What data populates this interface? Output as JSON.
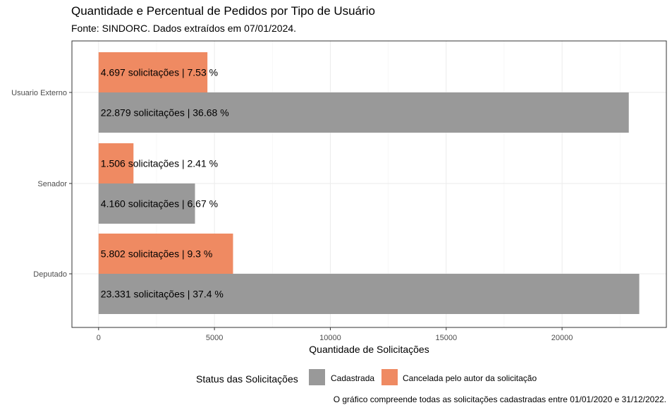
{
  "chart_data": {
    "type": "bar",
    "orientation": "horizontal",
    "title": "Quantidade e Percentual de Pedidos por Tipo de Usuário",
    "subtitle": "Fonte: SINDORC. Dados extraídos em 07/01/2024.",
    "xlabel": "Quantidade de Solicitações",
    "ylabel": "",
    "categories": [
      "Usuario Externo",
      "Senador",
      "Deputado"
    ],
    "xlim": [
      -1150,
      24500
    ],
    "xticks": [
      0,
      5000,
      10000,
      15000,
      20000
    ],
    "xtick_labels": [
      "0",
      "5000",
      "10000",
      "15000",
      "20000"
    ],
    "grid": true,
    "legend_position": "bottom",
    "legend_title": "Status das Solicitações",
    "series": [
      {
        "name": "Cadastrada",
        "color": "#999999",
        "values": [
          22879,
          4160,
          23331
        ],
        "labels": [
          "22.879 solicitações | 36.68 %",
          "4.160 solicitações | 6.67 %",
          "23.331 solicitações | 37.4 %"
        ]
      },
      {
        "name": "Cancelada pelo autor da solicitação",
        "color": "#EF8A62",
        "values": [
          4697,
          1506,
          5802
        ],
        "labels": [
          "4.697 solicitações | 7.53 %",
          "1.506 solicitações | 2.41 %",
          "5.802 solicitações | 9.3 %"
        ]
      }
    ],
    "caption": "O gráfico compreende todas as solicitações cadastradas entre 01/01/2020 e 31/12/2022."
  }
}
